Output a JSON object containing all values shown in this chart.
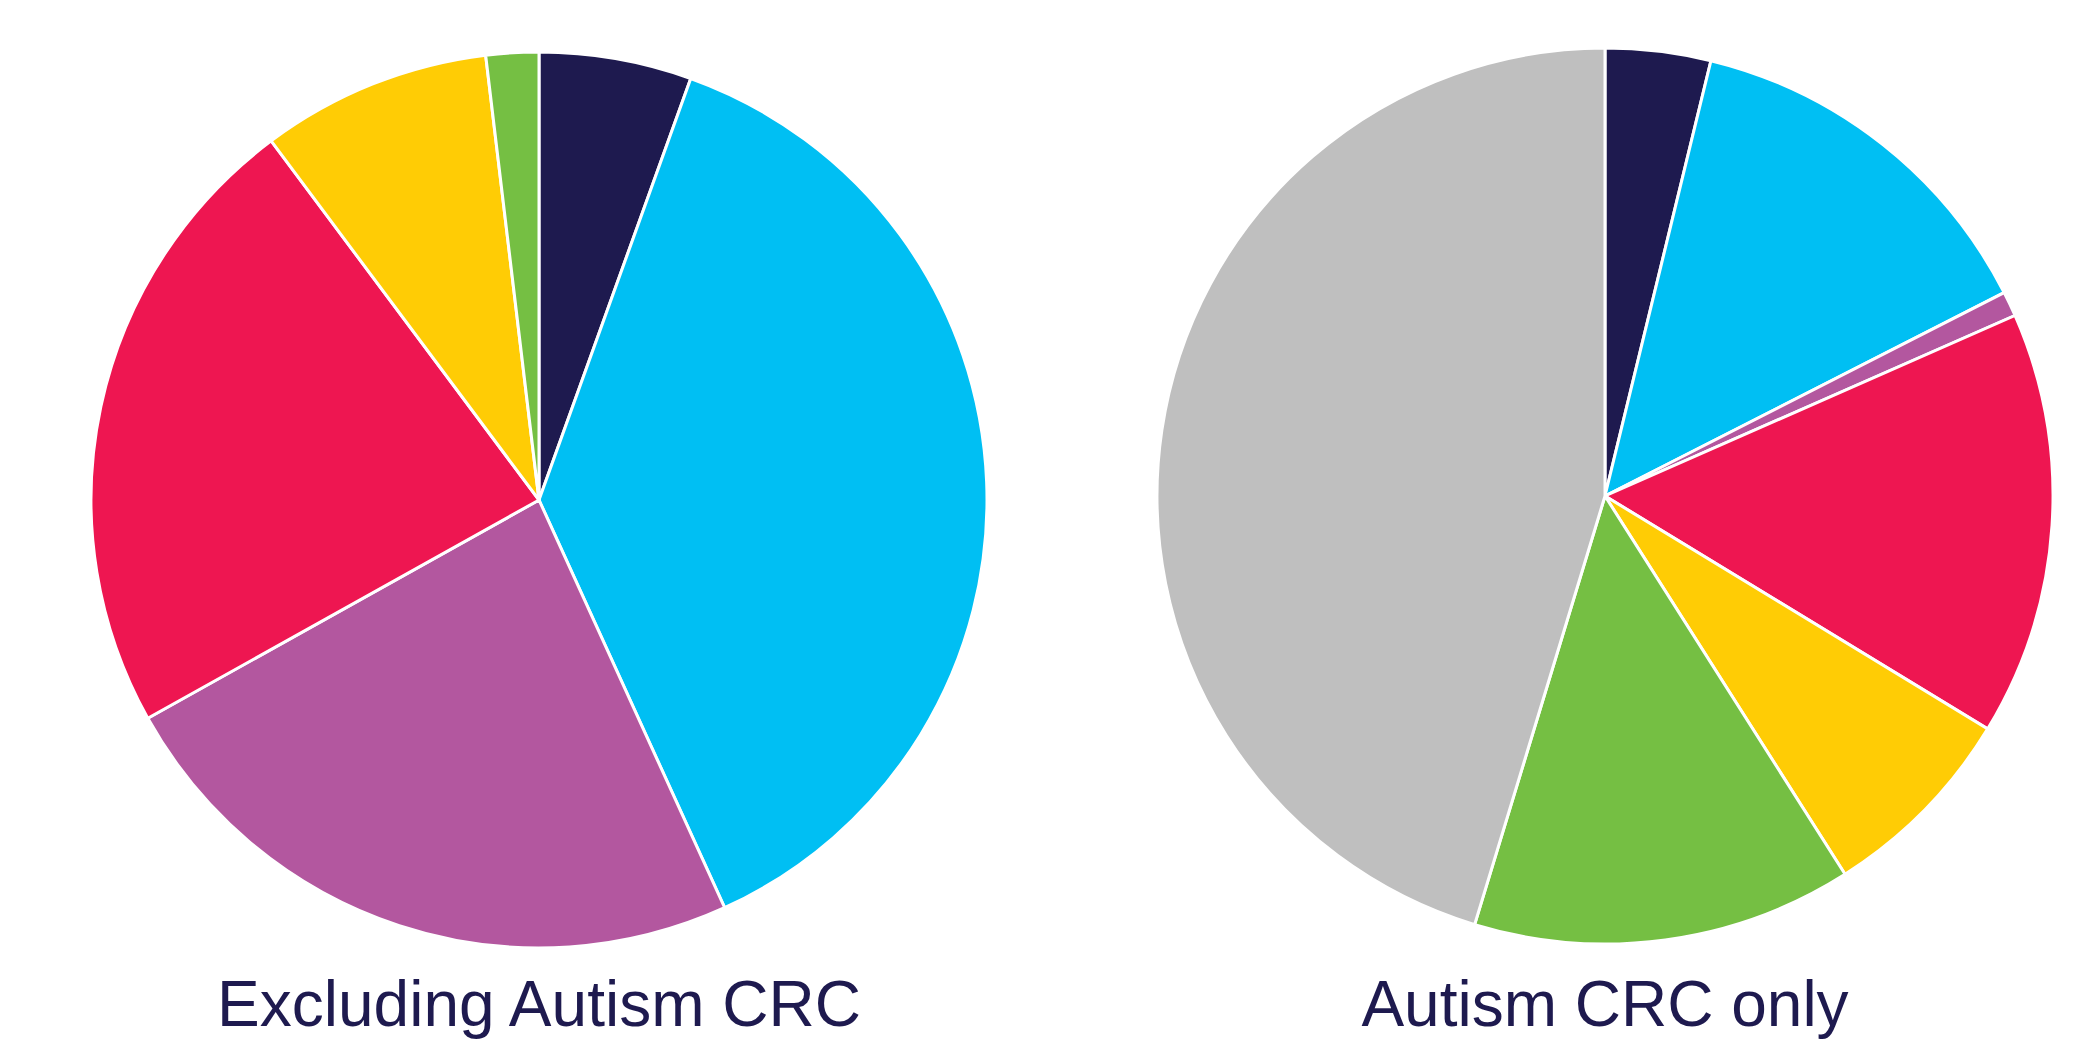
{
  "chart_data": [
    {
      "type": "pie",
      "title": "Excluding Autism CRC",
      "categories": [
        null,
        null,
        null,
        null,
        null,
        null
      ],
      "values": [
        5.5,
        37.7,
        23.7,
        22.9,
        8.3,
        1.9
      ],
      "colors": [
        "#1e1a4f",
        "#00bff3",
        "#b3579f",
        "#ee1651",
        "#ffcc05",
        "#75bf43"
      ]
    },
    {
      "type": "pie",
      "title": "Autism CRC only",
      "categories": [
        null,
        null,
        null,
        null,
        null,
        null,
        null
      ],
      "values": [
        3.8,
        13.7,
        0.9,
        15.3,
        7.3,
        13.7,
        45.3
      ],
      "colors": [
        "#1e1a4f",
        "#00bff3",
        "#b3579f",
        "#ee1651",
        "#ffcc05",
        "#75bf43",
        "#bfbfbf"
      ]
    }
  ]
}
